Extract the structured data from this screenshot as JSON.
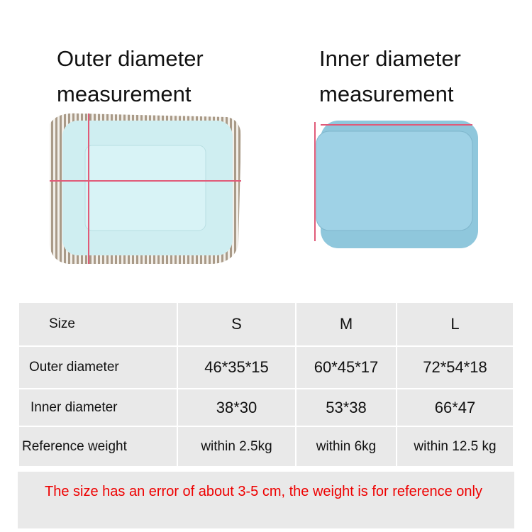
{
  "headings": [
    "Outer diameter measurement",
    "Inner diameter measurement"
  ],
  "table": {
    "header": [
      "Size",
      "S",
      "M",
      "L"
    ],
    "rows": [
      [
        "Outer diameter",
        "46*35*15",
        "60*45*17",
        "72*54*18"
      ],
      [
        "Inner diameter",
        "38*30",
        "53*38",
        "66*47"
      ],
      [
        "Reference weight",
        "within 2.5kg",
        "within 6kg",
        "within 12.5 kg"
      ]
    ]
  },
  "note": "The size has an error of about 3-5 cm, the weight is for reference only"
}
